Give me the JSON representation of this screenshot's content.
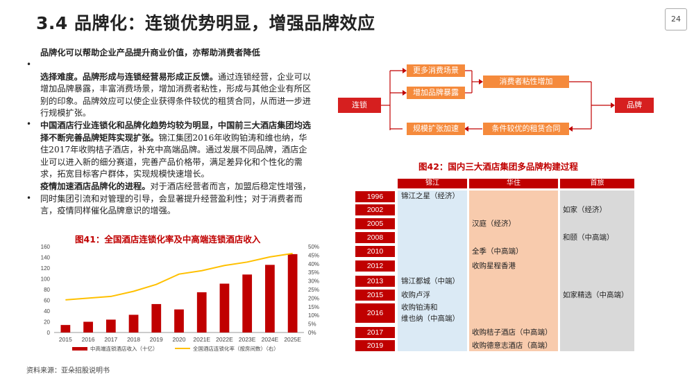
{
  "header": {
    "title": "3.4 品牌化：连锁优势明显，增强品牌效应",
    "page_number": "24"
  },
  "body": {
    "p1_line1": "品牌化可以帮助企业产品提升商业价值，亦帮助消费者降低",
    "p1_bold": "选择难度。品牌形成与连锁经营易形成正反馈。",
    "p1_rest": "通过连锁经营，企业可以增加品牌暴露，丰富消费场景，增加消费者粘性，形成与其他企业有所区别的印象。品牌效应可以使企业获得条件较优的租赁合同，从而进一步进行规模扩张。",
    "p2_bold": "中国酒店行业连锁化和品牌化趋势均较为明显，中国前三大酒店集团均选择不断完善品牌矩阵实现扩张。",
    "p2_rest": "锦江集团2016年收购铂涛和维也纳，华住2017年收购桔子酒店，补充中高端品牌。通过发展不同品牌，酒店企业可以进入新的细分赛道，完善产品价格带，满足差异化和个性化的需求，拓宽目标客户群体，实现规模快速增长。",
    "p3_bold": "疫情加速酒店品牌化的进程。",
    "p3_rest": "对于酒店经营者而言，加盟后稳定性增强，同时集团引流和对管理的引导，会显著提升经营盈利性；对于消费者而言，疫情同样催化品牌意识的增强。",
    "bullet_glyph": "•"
  },
  "flow": {
    "chain": "连锁",
    "brand": "品牌",
    "more_scenes": "更多消费场景",
    "more_exposure": "增加品牌暴露",
    "stickiness": "消费者粘性增加",
    "expansion": "规模扩张加速",
    "lease": "条件较优的租赁合同"
  },
  "fig41_title": "图41：全国酒店连锁化率及中高端连锁酒店收入",
  "fig42_title": "图42：国内三大酒店集团多品牌构建过程",
  "source": "资料来源：亚朵招股说明书",
  "chart_data": {
    "type": "bar",
    "categories": [
      "2015",
      "2016",
      "2017",
      "2018",
      "2019",
      "2020",
      "2021E",
      "2022E",
      "2023E",
      "2024E",
      "2025E"
    ],
    "series": [
      {
        "name": "中高端连锁酒店收入（十亿）",
        "type": "bar",
        "axis": "left",
        "color": "#c00000",
        "values": [
          14,
          20,
          24,
          33,
          53,
          43,
          75,
          91,
          108,
          126,
          146
        ]
      },
      {
        "name": "全国酒店连锁化率（按房间数）（右）",
        "type": "line",
        "axis": "right",
        "color": "#ffc000",
        "values": [
          19,
          20,
          21,
          24,
          28,
          34,
          36,
          39,
          41,
          44,
          46
        ]
      }
    ],
    "ylim_left": [
      0,
      160
    ],
    "yticks_left": [
      "0",
      "20",
      "40",
      "60",
      "80",
      "100",
      "120",
      "140",
      "160"
    ],
    "ylim_right": [
      0,
      50
    ],
    "yticks_right": [
      "0%",
      "5%",
      "10%",
      "15%",
      "20%",
      "25%",
      "30%",
      "35%",
      "40%",
      "45%",
      "50%"
    ],
    "legend_position": "bottom",
    "grid": false
  },
  "brand_table": {
    "groups": [
      "锦江",
      "华住",
      "首旅"
    ],
    "years": [
      "1996",
      "2002",
      "2005",
      "2008",
      "2010",
      "2012",
      "2013",
      "2015",
      "2016",
      "2017",
      "2019"
    ],
    "jinjiang": [
      "锦江之星（经济）",
      "锦江都城（中端）",
      "收购卢浮",
      "收购铂涛和",
      "维也纳（中高端）"
    ],
    "huazhu": [
      "汉庭（经济）",
      "全季（中高端）",
      "收购星程香港",
      "收购桔子酒店（中高端）",
      "收购德意志酒店（高端）"
    ],
    "shoulv": [
      "如家（经济）",
      "和颐（中高端）",
      "如家精选（中高端）"
    ]
  },
  "colors": {
    "accent_red": "#c00000",
    "flow_red": "#d61f1f",
    "flow_orange": "#f58a3c",
    "line_yellow": "#ffc000",
    "jinjiang_bg": "#dbeaf5",
    "huazhu_bg": "#f8cbad",
    "shoulv_bg": "#d9d9d9"
  }
}
